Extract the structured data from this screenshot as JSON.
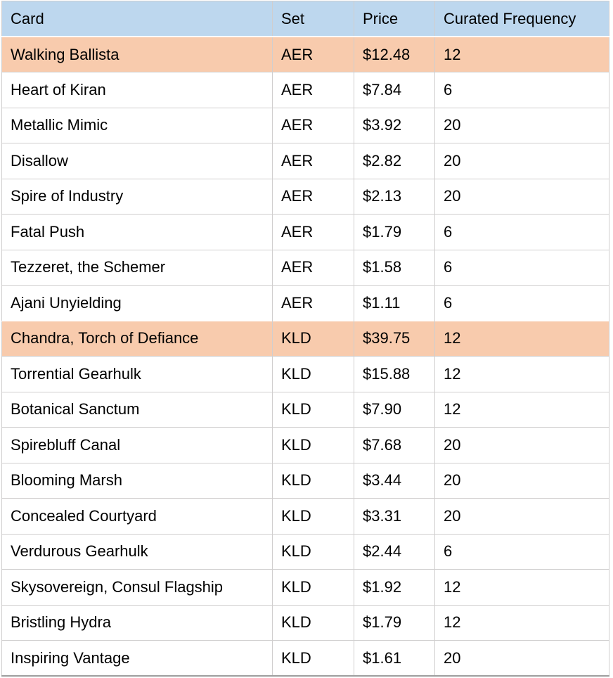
{
  "table": {
    "columns": [
      {
        "key": "card",
        "label": "Card"
      },
      {
        "key": "set",
        "label": "Set"
      },
      {
        "key": "price",
        "label": "Price"
      },
      {
        "key": "freq",
        "label": "Curated Frequency"
      }
    ],
    "rows": [
      {
        "card": "Walking Ballista",
        "set": "AER",
        "price": "$12.48",
        "freq": "12",
        "highlight": true
      },
      {
        "card": "Heart of Kiran",
        "set": "AER",
        "price": "$7.84",
        "freq": "6",
        "highlight": false
      },
      {
        "card": "Metallic Mimic",
        "set": "AER",
        "price": "$3.92",
        "freq": "20",
        "highlight": false
      },
      {
        "card": "Disallow",
        "set": "AER",
        "price": "$2.82",
        "freq": "20",
        "highlight": false
      },
      {
        "card": "Spire of Industry",
        "set": "AER",
        "price": "$2.13",
        "freq": "20",
        "highlight": false
      },
      {
        "card": "Fatal Push",
        "set": "AER",
        "price": "$1.79",
        "freq": "6",
        "highlight": false
      },
      {
        "card": "Tezzeret, the Schemer",
        "set": "AER",
        "price": "$1.58",
        "freq": "6",
        "highlight": false
      },
      {
        "card": "Ajani Unyielding",
        "set": "AER",
        "price": "$1.11",
        "freq": "6",
        "highlight": false
      },
      {
        "card": "Chandra, Torch of Defiance",
        "set": "KLD",
        "price": "$39.75",
        "freq": "12",
        "highlight": true
      },
      {
        "card": "Torrential Gearhulk",
        "set": "KLD",
        "price": "$15.88",
        "freq": "12",
        "highlight": false
      },
      {
        "card": "Botanical Sanctum",
        "set": "KLD",
        "price": "$7.90",
        "freq": "12",
        "highlight": false
      },
      {
        "card": "Spirebluff Canal",
        "set": "KLD",
        "price": "$7.68",
        "freq": "20",
        "highlight": false
      },
      {
        "card": "Blooming Marsh",
        "set": "KLD",
        "price": "$3.44",
        "freq": "20",
        "highlight": false
      },
      {
        "card": "Concealed Courtyard",
        "set": "KLD",
        "price": "$3.31",
        "freq": "20",
        "highlight": false
      },
      {
        "card": "Verdurous Gearhulk",
        "set": "KLD",
        "price": "$2.44",
        "freq": "6",
        "highlight": false
      },
      {
        "card": "Skysovereign, Consul Flagship",
        "set": "KLD",
        "price": "$1.92",
        "freq": "12",
        "highlight": false
      },
      {
        "card": "Bristling Hydra",
        "set": "KLD",
        "price": "$1.79",
        "freq": "12",
        "highlight": false
      },
      {
        "card": "Inspiring Vantage",
        "set": "KLD",
        "price": "$1.61",
        "freq": "20",
        "highlight": false
      }
    ]
  },
  "colors": {
    "header_bg": "#bdd7ee",
    "highlight_bg": "#f8cbad",
    "grid": "#d0cece",
    "outer_bottom": "#9e9e9e"
  }
}
